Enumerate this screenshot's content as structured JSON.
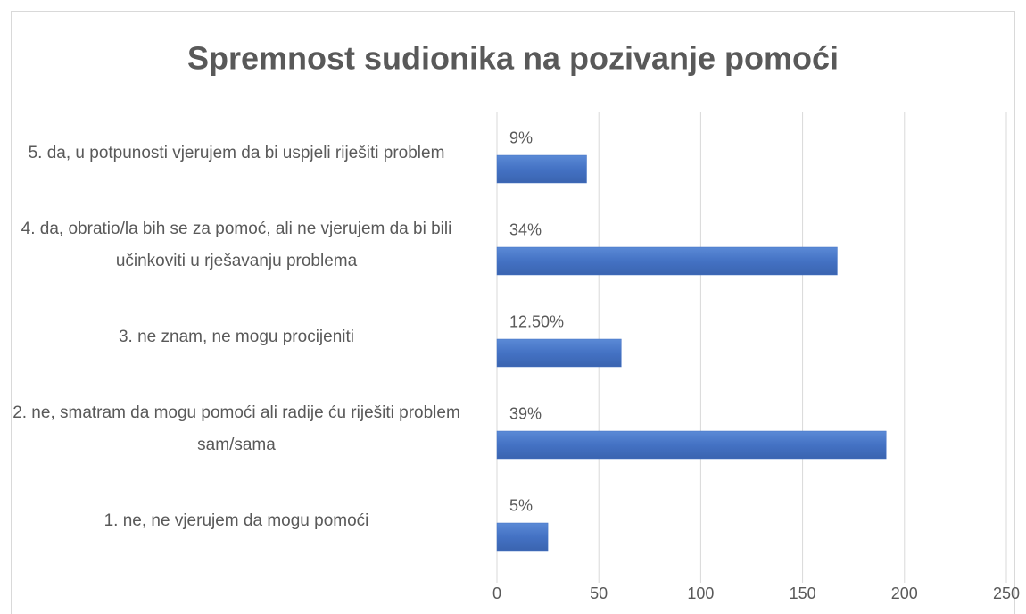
{
  "chart_data": {
    "type": "barh",
    "title": "Spremnost sudionika na pozivanje pomoći",
    "categories": [
      "5. da, u potpunosti vjerujem da bi uspjeli riješiti problem",
      "4. da, obratio/la bih se za pomoć, ali ne vjerujem da bi bili učinkoviti u rješavanju problema",
      "3. ne znam, ne mogu procijeniti",
      "2. ne, smatram da mogu pomoći ali radije ću riješiti problem sam/sama",
      "1. ne, ne vjerujem da mogu pomoći"
    ],
    "values": [
      44,
      167,
      61,
      191,
      25
    ],
    "value_labels": [
      "9%",
      "34%",
      "12.50%",
      "39%",
      "5%"
    ],
    "color": "#4472c4",
    "xlim": [
      0,
      250
    ],
    "xticks": [
      0,
      50,
      100,
      150,
      200,
      250
    ],
    "grid": true
  }
}
